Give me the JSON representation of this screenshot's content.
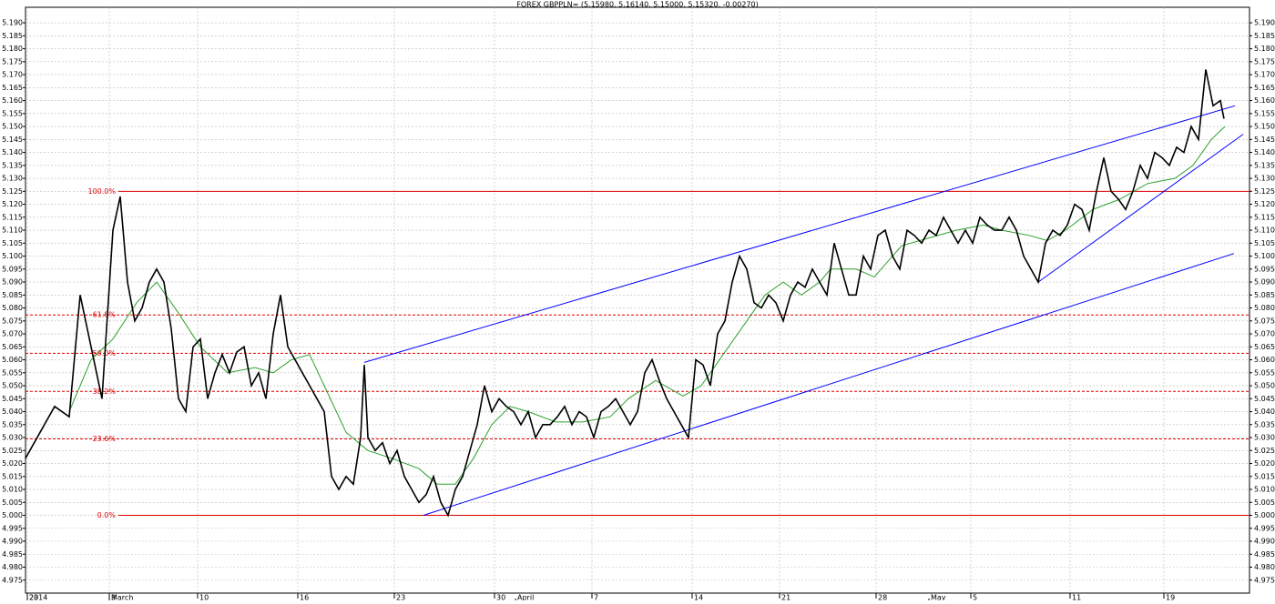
{
  "chart_data": {
    "type": "line",
    "title": "FOREX GBPPLN= (5.15980, 5.16140, 5.15000, 5.15320, -0.00270)",
    "xlim": [
      0,
      1344
    ],
    "ylim": [
      4.97,
      5.196
    ],
    "grid": true,
    "xticks": [
      {
        "value": 2,
        "label": "23"
      },
      {
        "value": 92,
        "label": "3"
      },
      {
        "value": 189,
        "label": "10"
      },
      {
        "value": 299,
        "label": "16"
      },
      {
        "value": 405,
        "label": "23"
      },
      {
        "value": 515,
        "label": "30"
      },
      {
        "value": 622,
        "label": "7"
      },
      {
        "value": 732,
        "label": "14"
      },
      {
        "value": 828,
        "label": "21"
      },
      {
        "value": 934,
        "label": "28"
      },
      {
        "value": 1038,
        "label": "5"
      },
      {
        "value": 1147,
        "label": "11"
      },
      {
        "value": 1250,
        "label": "19"
      }
    ],
    "month_ticks": [
      {
        "value": 2,
        "label": "2014"
      },
      {
        "value": 92,
        "label": "March"
      },
      {
        "value": 538,
        "label": "April"
      },
      {
        "value": 992,
        "label": "May"
      }
    ],
    "yticks": [
      {
        "value": 4.975,
        "label": "4.975"
      },
      {
        "value": 4.98,
        "label": "4.980"
      },
      {
        "value": 4.985,
        "label": "4.985"
      },
      {
        "value": 4.99,
        "label": "4.990"
      },
      {
        "value": 4.995,
        "label": "4.995"
      },
      {
        "value": 5.0,
        "label": "5.000"
      },
      {
        "value": 5.005,
        "label": "5.005"
      },
      {
        "value": 5.01,
        "label": "5.010"
      },
      {
        "value": 5.015,
        "label": "5.015"
      },
      {
        "value": 5.02,
        "label": "5.020"
      },
      {
        "value": 5.025,
        "label": "5.025"
      },
      {
        "value": 5.03,
        "label": "5.030"
      },
      {
        "value": 5.035,
        "label": "5.035"
      },
      {
        "value": 5.04,
        "label": "5.040"
      },
      {
        "value": 5.045,
        "label": "5.045"
      },
      {
        "value": 5.05,
        "label": "5.050"
      },
      {
        "value": 5.055,
        "label": "5.055"
      },
      {
        "value": 5.06,
        "label": "5.060"
      },
      {
        "value": 5.065,
        "label": "5.065"
      },
      {
        "value": 5.07,
        "label": "5.070"
      },
      {
        "value": 5.075,
        "label": "5.075"
      },
      {
        "value": 5.08,
        "label": "5.080"
      },
      {
        "value": 5.085,
        "label": "5.085"
      },
      {
        "value": 5.09,
        "label": "5.090"
      },
      {
        "value": 5.095,
        "label": "5.095"
      },
      {
        "value": 5.1,
        "label": "5.100"
      },
      {
        "value": 5.105,
        "label": "5.105"
      },
      {
        "value": 5.11,
        "label": "5.110"
      },
      {
        "value": 5.115,
        "label": "5.115"
      },
      {
        "value": 5.12,
        "label": "5.120"
      },
      {
        "value": 5.125,
        "label": "5.125"
      },
      {
        "value": 5.13,
        "label": "5.130"
      },
      {
        "value": 5.135,
        "label": "5.135"
      },
      {
        "value": 5.14,
        "label": "5.140"
      },
      {
        "value": 5.145,
        "label": "5.145"
      },
      {
        "value": 5.15,
        "label": "5.150"
      },
      {
        "value": 5.155,
        "label": "5.155"
      },
      {
        "value": 5.16,
        "label": "5.160"
      },
      {
        "value": 5.165,
        "label": "5.165"
      },
      {
        "value": 5.17,
        "label": "5.170"
      },
      {
        "value": 5.175,
        "label": "5.175"
      },
      {
        "value": 5.18,
        "label": "5.180"
      },
      {
        "value": 5.185,
        "label": "5.185"
      },
      {
        "value": 5.19,
        "label": "5.190"
      }
    ],
    "series": [
      {
        "color": "#000000",
        "x": [
          0,
          16,
          32,
          48,
          60,
          72,
          84,
          96,
          104,
          112,
          120,
          128,
          136,
          144,
          152,
          160,
          168,
          176,
          184,
          192,
          200,
          208,
          216,
          224,
          232,
          240,
          248,
          256,
          264,
          272,
          280,
          288,
          296,
          304,
          312,
          320,
          328,
          336,
          344,
          352,
          360,
          368,
          372,
          376,
          384,
          392,
          400,
          408,
          416,
          424,
          432,
          440,
          448,
          456,
          464,
          472,
          480,
          488,
          496,
          504,
          512,
          520,
          528,
          536,
          544,
          552,
          560,
          568,
          576,
          584,
          592,
          600,
          608,
          616,
          624,
          632,
          640,
          648,
          656,
          664,
          672,
          680,
          688,
          696,
          704,
          712,
          720,
          728,
          736,
          744,
          752,
          760,
          768,
          776,
          784,
          792,
          800,
          808,
          816,
          824,
          832,
          840,
          848,
          856,
          864,
          872,
          880,
          888,
          896,
          904,
          912,
          920,
          928,
          936,
          944,
          952,
          960,
          968,
          976,
          984,
          992,
          1000,
          1008,
          1016,
          1024,
          1032,
          1040,
          1048,
          1056,
          1064,
          1072,
          1080,
          1088,
          1096,
          1104,
          1112,
          1120,
          1128,
          1136,
          1144,
          1152,
          1160,
          1168,
          1176,
          1184,
          1192,
          1200,
          1208,
          1216,
          1224,
          1232,
          1240,
          1248,
          1256,
          1264,
          1272,
          1280,
          1288,
          1296,
          1304,
          1312,
          1316
        ],
        "values": [
          5.022,
          5.032,
          5.042,
          5.038,
          5.085,
          5.065,
          5.045,
          5.11,
          5.123,
          5.09,
          5.075,
          5.08,
          5.09,
          5.095,
          5.09,
          5.072,
          5.045,
          5.04,
          5.065,
          5.068,
          5.045,
          5.055,
          5.062,
          5.055,
          5.063,
          5.065,
          5.05,
          5.055,
          5.045,
          5.07,
          5.085,
          5.065,
          5.06,
          5.055,
          5.05,
          5.045,
          5.04,
          5.015,
          5.01,
          5.015,
          5.012,
          5.03,
          5.058,
          5.03,
          5.025,
          5.028,
          5.02,
          5.025,
          5.015,
          5.01,
          5.005,
          5.008,
          5.015,
          5.005,
          5.0,
          5.01,
          5.015,
          5.025,
          5.035,
          5.05,
          5.04,
          5.045,
          5.042,
          5.04,
          5.035,
          5.04,
          5.03,
          5.035,
          5.035,
          5.038,
          5.042,
          5.035,
          5.04,
          5.038,
          5.03,
          5.04,
          5.042,
          5.045,
          5.04,
          5.035,
          5.04,
          5.055,
          5.06,
          5.052,
          5.045,
          5.04,
          5.035,
          5.03,
          5.06,
          5.058,
          5.05,
          5.07,
          5.075,
          5.09,
          5.1,
          5.095,
          5.082,
          5.08,
          5.085,
          5.082,
          5.075,
          5.085,
          5.09,
          5.088,
          5.095,
          5.09,
          5.085,
          5.105,
          5.095,
          5.085,
          5.085,
          5.1,
          5.095,
          5.108,
          5.11,
          5.1,
          5.095,
          5.11,
          5.108,
          5.105,
          5.11,
          5.108,
          5.115,
          5.11,
          5.105,
          5.11,
          5.105,
          5.115,
          5.112,
          5.11,
          5.11,
          5.115,
          5.11,
          5.1,
          5.095,
          5.09,
          5.105,
          5.11,
          5.108,
          5.112,
          5.12,
          5.118,
          5.11,
          5.125,
          5.138,
          5.125,
          5.122,
          5.118,
          5.125,
          5.135,
          5.13,
          5.14,
          5.138,
          5.135,
          5.142,
          5.14,
          5.15,
          5.145,
          5.172,
          5.158,
          5.16,
          5.153
        ]
      },
      {
        "color": "#2ca02c",
        "x": [
          48,
          72,
          96,
          122,
          144,
          168,
          192,
          222,
          252,
          272,
          292,
          312,
          328,
          352,
          376,
          402,
          432,
          452,
          472,
          492,
          512,
          532,
          552,
          582,
          612,
          642,
          662,
          692,
          722,
          742,
          772,
          792,
          812,
          832,
          852,
          872,
          884,
          912,
          932,
          962,
          992,
          1022,
          1052,
          1072,
          1102,
          1122,
          1142,
          1172,
          1202,
          1232,
          1262,
          1282,
          1302,
          1317
        ],
        "values": [
          5.04,
          5.06,
          5.068,
          5.082,
          5.09,
          5.078,
          5.065,
          5.055,
          5.057,
          5.055,
          5.06,
          5.062,
          5.05,
          5.032,
          5.025,
          5.022,
          5.018,
          5.012,
          5.012,
          5.022,
          5.035,
          5.042,
          5.04,
          5.036,
          5.036,
          5.038,
          5.045,
          5.052,
          5.046,
          5.05,
          5.065,
          5.075,
          5.085,
          5.09,
          5.085,
          5.09,
          5.095,
          5.095,
          5.092,
          5.104,
          5.107,
          5.11,
          5.112,
          5.11,
          5.108,
          5.106,
          5.11,
          5.118,
          5.122,
          5.128,
          5.13,
          5.135,
          5.145,
          5.15
        ]
      }
    ],
    "trendlines": [
      {
        "color": "#0000ff",
        "x": [
          372,
          1328
        ],
        "values": [
          5.059,
          5.158
        ]
      },
      {
        "color": "#0000ff",
        "x": [
          437,
          1327
        ],
        "values": [
          5.0,
          5.101
        ]
      },
      {
        "color": "#0000ff",
        "x": [
          1112,
          1337
        ],
        "values": [
          5.09,
          5.147
        ]
      }
    ],
    "fibonacci": {
      "color": "#e00000",
      "levels": [
        {
          "label": "100.0%",
          "value": 5.125
        },
        {
          "label": "61.8%",
          "value": 5.0773
        },
        {
          "label": "50.0%",
          "value": 5.0625
        },
        {
          "label": "38.2%",
          "value": 5.0478
        },
        {
          "label": "23.6%",
          "value": 5.0295
        },
        {
          "label": "0.0%",
          "value": 5.0
        }
      ]
    }
  }
}
